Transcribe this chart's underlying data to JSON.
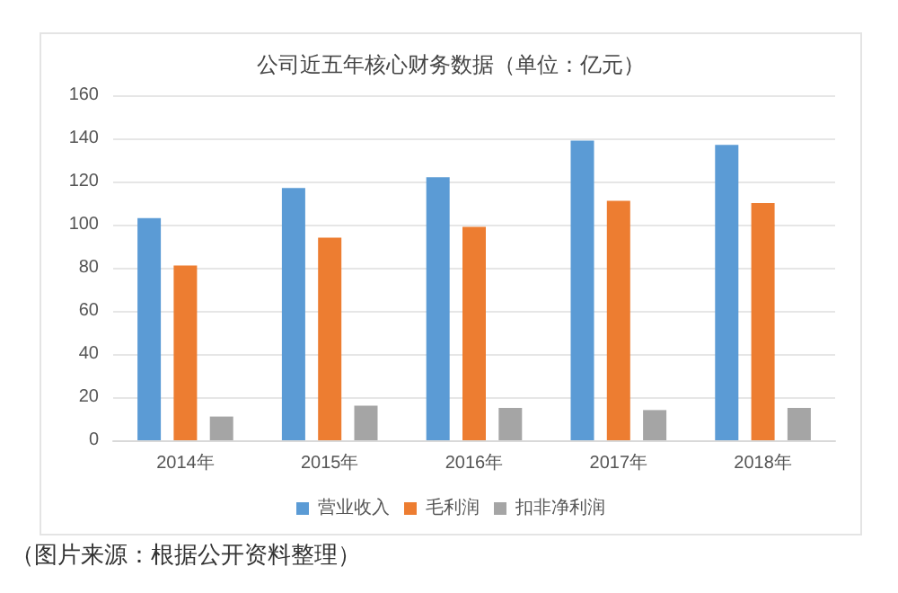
{
  "chart_data": {
    "type": "bar",
    "title": "公司近五年核心财务数据（单位：亿元）",
    "categories": [
      "2014年",
      "2015年",
      "2016年",
      "2017年",
      "2018年"
    ],
    "series": [
      {
        "name": "营业收入",
        "color": "#5b9bd5",
        "values": [
          103,
          117,
          122,
          139,
          137
        ]
      },
      {
        "name": "毛利润",
        "color": "#ed7d31",
        "values": [
          81,
          94,
          99,
          111,
          110
        ]
      },
      {
        "name": "扣非净利润",
        "color": "#a5a5a5",
        "values": [
          11,
          16,
          15,
          14,
          15
        ]
      }
    ],
    "ylim": [
      0,
      160
    ],
    "yticks": [
      0,
      20,
      40,
      60,
      80,
      100,
      120,
      140,
      160
    ],
    "grid": "y",
    "legend": "bottom",
    "annotations": [
      "（图片来源：根据公开资料整理）"
    ]
  }
}
